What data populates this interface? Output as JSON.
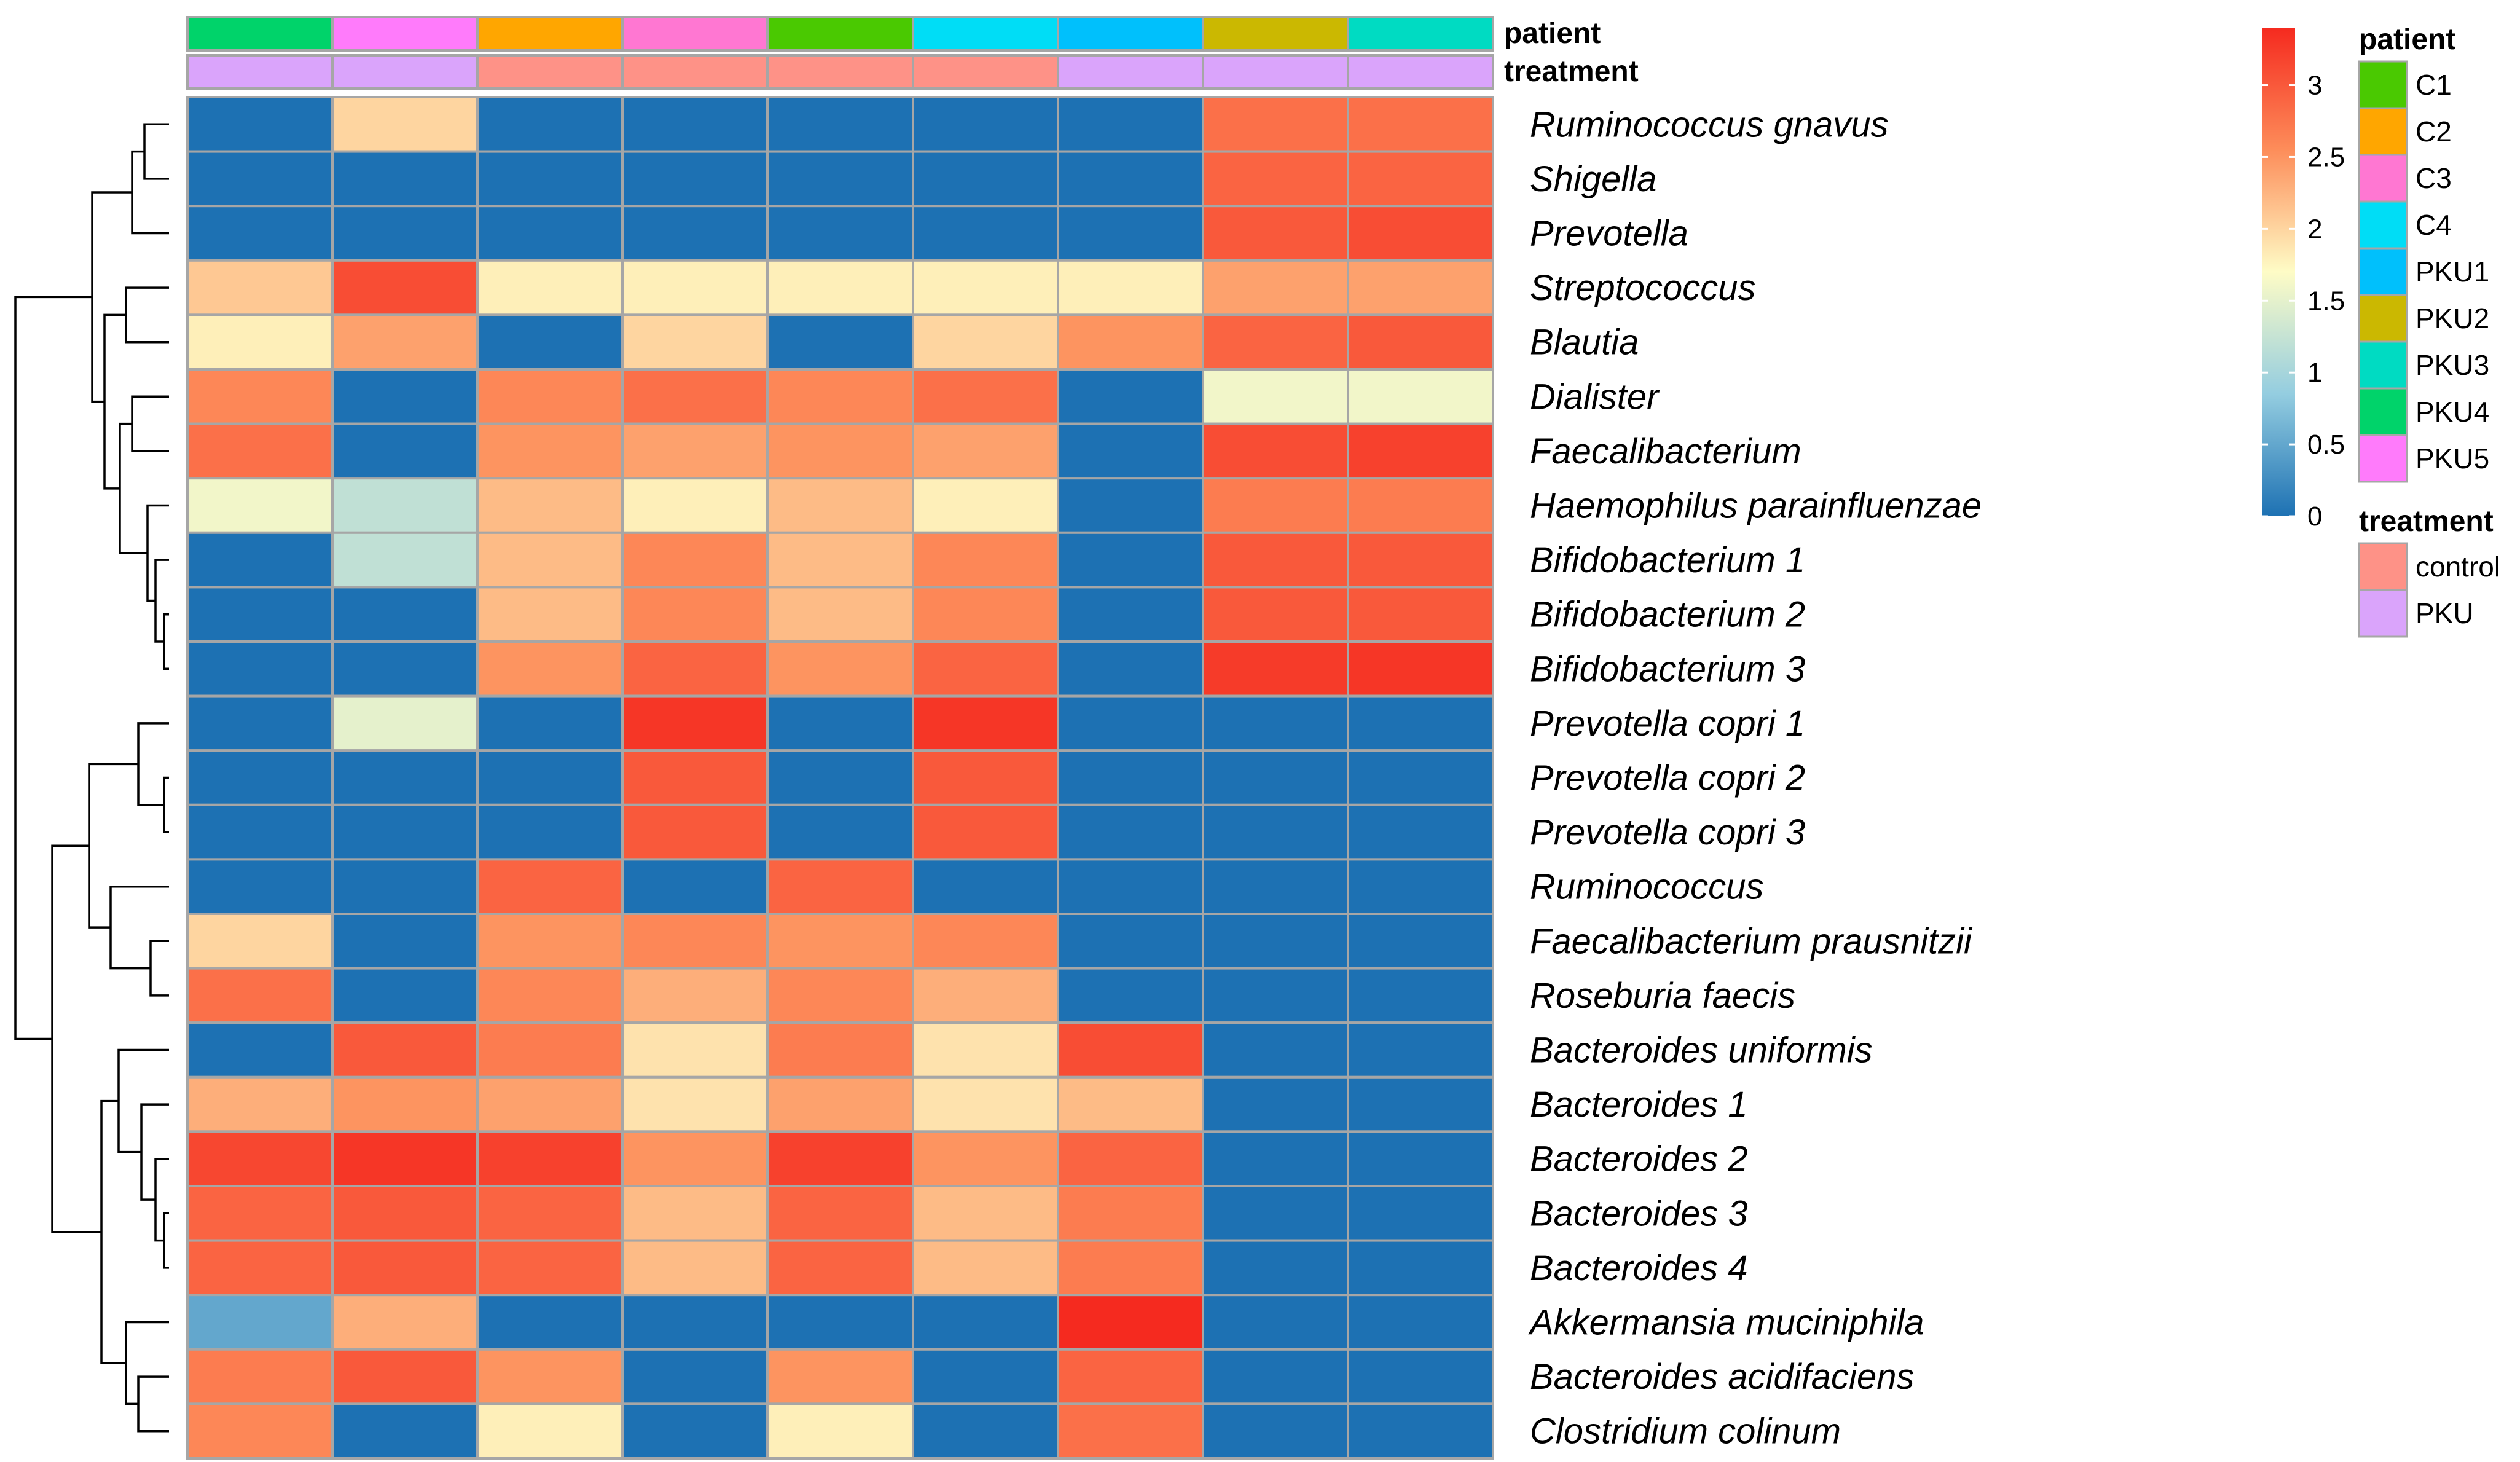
{
  "chart_data": {
    "type": "heatmap",
    "title": "",
    "rows": [
      "Ruminococcus gnavus",
      "Shigella",
      "Prevotella",
      "Streptococcus",
      "Blautia",
      "Dialister",
      "Faecalibacterium",
      "Haemophilus parainfluenzae",
      "Bifidobacterium 1",
      "Bifidobacterium 2",
      "Bifidobacterium 3",
      "Prevotella copri 1",
      "Prevotella copri 2",
      "Prevotella copri 3",
      "Ruminococcus",
      "Faecalibacterium prausnitzii",
      "Roseburia faecis",
      "Bacteroides uniformis",
      "Bacteroides 1",
      "Bacteroides 2",
      "Bacteroides 3",
      "Bacteroides 4",
      "Akkermansia muciniphila",
      "Bacteroides acidifaciens",
      "Clostridium colinum"
    ],
    "columns": [
      "PKU4",
      "PKU5",
      "C2",
      "C3",
      "C1",
      "C4",
      "PKU1",
      "PKU2",
      "PKU3"
    ],
    "values": [
      [
        0,
        2.0,
        0,
        0,
        0,
        0,
        0,
        2.8,
        2.8
      ],
      [
        0,
        0,
        0,
        0,
        0,
        0,
        0,
        2.9,
        2.9
      ],
      [
        0,
        0,
        0,
        0,
        0,
        0,
        0,
        3.0,
        3.1
      ],
      [
        2.1,
        3.1,
        1.8,
        1.8,
        1.8,
        1.8,
        1.8,
        2.4,
        2.4
      ],
      [
        1.8,
        2.4,
        0,
        2.0,
        0,
        2.0,
        2.5,
        2.9,
        3.0
      ],
      [
        2.6,
        0,
        2.6,
        2.8,
        2.6,
        2.8,
        0,
        1.6,
        1.6
      ],
      [
        2.8,
        0,
        2.5,
        2.4,
        2.5,
        2.4,
        0,
        3.1,
        3.2
      ],
      [
        1.6,
        1.2,
        2.2,
        1.8,
        2.2,
        1.8,
        0,
        2.7,
        2.7
      ],
      [
        0,
        1.2,
        2.2,
        2.6,
        2.2,
        2.6,
        0,
        3.0,
        3.0
      ],
      [
        0,
        0,
        2.2,
        2.6,
        2.2,
        2.6,
        0,
        3.0,
        3.0
      ],
      [
        0,
        0,
        2.5,
        2.9,
        2.5,
        2.9,
        0,
        3.25,
        3.3
      ],
      [
        0,
        1.5,
        0,
        3.3,
        0,
        3.3,
        0,
        0,
        0
      ],
      [
        0,
        0,
        0,
        3.0,
        0,
        3.0,
        0,
        0,
        0
      ],
      [
        0,
        0,
        0,
        3.0,
        0,
        3.0,
        0,
        0,
        0
      ],
      [
        0,
        0,
        2.9,
        0,
        2.9,
        0,
        0,
        0,
        0
      ],
      [
        2.0,
        0,
        2.5,
        2.6,
        2.5,
        2.6,
        0,
        0,
        0
      ],
      [
        2.8,
        0,
        2.6,
        2.3,
        2.6,
        2.3,
        0,
        0,
        0
      ],
      [
        0,
        3.0,
        2.7,
        1.9,
        2.7,
        1.9,
        3.1,
        0,
        0
      ],
      [
        2.3,
        2.5,
        2.4,
        1.9,
        2.4,
        1.9,
        2.2,
        0,
        0
      ],
      [
        3.15,
        3.3,
        3.2,
        2.5,
        3.2,
        2.5,
        2.9,
        0,
        0
      ],
      [
        2.9,
        3.0,
        2.9,
        2.2,
        2.9,
        2.2,
        2.7,
        0,
        0
      ],
      [
        2.9,
        3.0,
        2.9,
        2.2,
        2.9,
        2.2,
        2.7,
        0,
        0
      ],
      [
        0.5,
        2.3,
        0,
        0,
        0,
        0,
        3.4,
        0,
        0
      ],
      [
        2.7,
        3.0,
        2.5,
        0,
        2.5,
        0,
        2.9,
        0,
        0
      ],
      [
        2.6,
        0,
        1.8,
        0,
        1.8,
        0,
        2.8,
        0,
        0
      ]
    ],
    "color_scale": {
      "min": 0,
      "max": 3.4,
      "ticks": [
        "0",
        "0.5",
        "1",
        "1.5",
        "2",
        "2.5",
        "3"
      ],
      "tick_values": [
        0,
        0.5,
        1,
        1.5,
        2,
        2.5,
        3
      ],
      "stops": [
        {
          "value": 0,
          "color": "#1d71b3"
        },
        {
          "value": 0.85,
          "color": "#94cde0"
        },
        {
          "value": 1.7,
          "color": "#fefcc6"
        },
        {
          "value": 2.55,
          "color": "#fd8d5a"
        },
        {
          "value": 3.4,
          "color": "#f52a1f"
        }
      ]
    },
    "annotations": [
      {
        "name": "patient",
        "values": [
          "PKU4",
          "PKU5",
          "C2",
          "C3",
          "C1",
          "C4",
          "PKU1",
          "PKU2",
          "PKU3"
        ]
      },
      {
        "name": "treatment",
        "values": [
          "PKU",
          "PKU",
          "control",
          "control",
          "control",
          "control",
          "PKU",
          "PKU",
          "PKU"
        ]
      }
    ],
    "legend": {
      "patient": {
        "title": "patient",
        "levels": [
          "C1",
          "C2",
          "C3",
          "C4",
          "PKU1",
          "PKU2",
          "PKU3",
          "PKU4",
          "PKU5"
        ],
        "colors": [
          "#4ac901",
          "#ffa600",
          "#ff77d2",
          "#00ddf6",
          "#00c0fc",
          "#cbb801",
          "#00dbc2",
          "#00d36a",
          "#ff7bfb"
        ]
      },
      "treatment": {
        "title": "treatment",
        "levels": [
          "control",
          "PKU"
        ],
        "colors": [
          "#fe9287",
          "#daa4fb"
        ]
      }
    },
    "dendrogram": {
      "leaf_order": [
        "Ruminococcus gnavus",
        "Shigella",
        "Prevotella",
        "Streptococcus",
        "Blautia",
        "Dialister",
        "Faecalibacterium",
        "Haemophilus parainfluenzae",
        "Bifidobacterium 1",
        "Bifidobacterium 2",
        "Bifidobacterium 3",
        "Prevotella copri 1",
        "Prevotella copri 2",
        "Prevotella copri 3",
        "Ruminococcus",
        "Faecalibacterium prausnitzii",
        "Roseburia faecis",
        "Bacteroides uniformis",
        "Bacteroides 1",
        "Bacteroides 2",
        "Bacteroides 3",
        "Bacteroides 4",
        "Akkermansia muciniphila",
        "Bacteroides acidifaciens",
        "Clostridium colinum"
      ]
    }
  }
}
